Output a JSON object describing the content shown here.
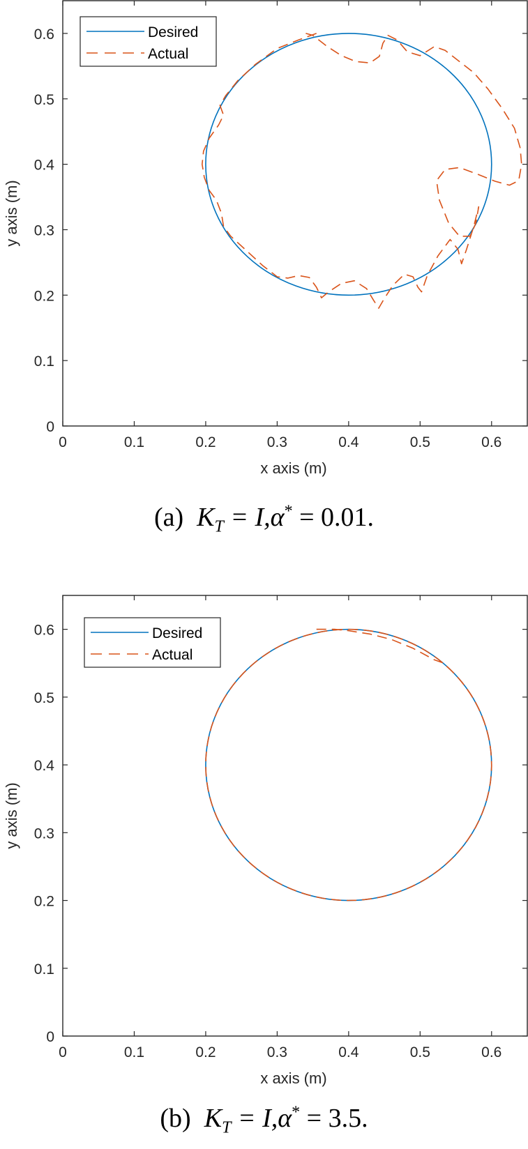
{
  "chart_data": [
    {
      "type": "line",
      "panel": "a",
      "caption": {
        "label": "(a)",
        "gain": "K",
        "gain_sub": "T",
        "eq1": " = I,",
        "alpha": "α",
        "star": "*",
        "value": " = 0.01."
      },
      "caption_text": "(a) K_T = I, α* = 0.01.",
      "xlabel": "x axis (m)",
      "ylabel": "y axis (m)",
      "xlim": [
        0,
        0.65
      ],
      "ylim": [
        0,
        0.65
      ],
      "xticks": [
        "0",
        "0.1",
        "0.2",
        "0.3",
        "0.4",
        "0.5",
        "0.6"
      ],
      "yticks": [
        "0",
        "0.1",
        "0.2",
        "0.3",
        "0.4",
        "0.5",
        "0.6"
      ],
      "grid": false,
      "legend": {
        "position": "upper-left",
        "entries": [
          "Desired",
          "Actual"
        ]
      },
      "series": [
        {
          "name": "Desired",
          "style": "solid",
          "color": "#0072BD",
          "shape": "circle",
          "center": [
            0.4,
            0.4
          ],
          "radius": 0.2
        },
        {
          "name": "Actual",
          "style": "dashed",
          "color": "#D95319",
          "points": [
            [
              0.355,
              0.6
            ],
            [
              0.33,
              0.59
            ],
            [
              0.3,
              0.577
            ],
            [
              0.27,
              0.553
            ],
            [
              0.245,
              0.528
            ],
            [
              0.228,
              0.505
            ],
            [
              0.22,
              0.49
            ],
            [
              0.225,
              0.475
            ],
            [
              0.218,
              0.46
            ],
            [
              0.205,
              0.44
            ],
            [
              0.197,
              0.42
            ],
            [
              0.195,
              0.4
            ],
            [
              0.198,
              0.38
            ],
            [
              0.205,
              0.36
            ],
            [
              0.215,
              0.345
            ],
            [
              0.222,
              0.325
            ],
            [
              0.225,
              0.305
            ],
            [
              0.235,
              0.29
            ],
            [
              0.255,
              0.27
            ],
            [
              0.28,
              0.245
            ],
            [
              0.3,
              0.228
            ],
            [
              0.315,
              0.226
            ],
            [
              0.33,
              0.23
            ],
            [
              0.345,
              0.227
            ],
            [
              0.355,
              0.212
            ],
            [
              0.362,
              0.196
            ],
            [
              0.372,
              0.205
            ],
            [
              0.39,
              0.218
            ],
            [
              0.408,
              0.222
            ],
            [
              0.425,
              0.21
            ],
            [
              0.435,
              0.192
            ],
            [
              0.442,
              0.18
            ],
            [
              0.45,
              0.195
            ],
            [
              0.462,
              0.215
            ],
            [
              0.478,
              0.232
            ],
            [
              0.49,
              0.228
            ],
            [
              0.497,
              0.212
            ],
            [
              0.502,
              0.205
            ],
            [
              0.51,
              0.23
            ],
            [
              0.525,
              0.26
            ],
            [
              0.542,
              0.285
            ],
            [
              0.553,
              0.27
            ],
            [
              0.558,
              0.248
            ],
            [
              0.565,
              0.27
            ],
            [
              0.575,
              0.305
            ],
            [
              0.582,
              0.335
            ],
            [
              0.578,
              0.31
            ],
            [
              0.57,
              0.29
            ],
            [
              0.555,
              0.29
            ],
            [
              0.54,
              0.31
            ],
            [
              0.527,
              0.345
            ],
            [
              0.523,
              0.375
            ],
            [
              0.535,
              0.392
            ],
            [
              0.555,
              0.395
            ],
            [
              0.58,
              0.385
            ],
            [
              0.605,
              0.374
            ],
            [
              0.625,
              0.368
            ],
            [
              0.638,
              0.375
            ],
            [
              0.642,
              0.4
            ],
            [
              0.64,
              0.425
            ],
            [
              0.632,
              0.455
            ],
            [
              0.615,
              0.485
            ],
            [
              0.595,
              0.515
            ],
            [
              0.575,
              0.54
            ],
            [
              0.555,
              0.557
            ],
            [
              0.535,
              0.574
            ],
            [
              0.52,
              0.58
            ],
            [
              0.5,
              0.566
            ],
            [
              0.482,
              0.572
            ],
            [
              0.468,
              0.59
            ],
            [
              0.455,
              0.597
            ],
            [
              0.448,
              0.585
            ],
            [
              0.443,
              0.565
            ],
            [
              0.43,
              0.555
            ],
            [
              0.41,
              0.557
            ],
            [
              0.39,
              0.566
            ],
            [
              0.37,
              0.58
            ],
            [
              0.35,
              0.597
            ],
            [
              0.34,
              0.6
            ]
          ]
        }
      ]
    },
    {
      "type": "line",
      "panel": "b",
      "caption": {
        "label": "(b)",
        "gain": "K",
        "gain_sub": "T",
        "eq1": " = I,",
        "alpha": "α",
        "star": "*",
        "value": " = 3.5."
      },
      "caption_text": "(b) K_T = I, α* = 3.5.",
      "xlabel": "x axis (m)",
      "ylabel": "y axis (m)",
      "xlim": [
        0,
        0.65
      ],
      "ylim": [
        0,
        0.65
      ],
      "xticks": [
        "0",
        "0.1",
        "0.2",
        "0.3",
        "0.4",
        "0.5",
        "0.6"
      ],
      "yticks": [
        "0",
        "0.1",
        "0.2",
        "0.3",
        "0.4",
        "0.5",
        "0.6"
      ],
      "grid": false,
      "legend": {
        "position": "upper-left",
        "entries": [
          "Desired",
          "Actual"
        ]
      },
      "series": [
        {
          "name": "Desired",
          "style": "solid",
          "color": "#0072BD",
          "shape": "circle",
          "center": [
            0.4,
            0.4
          ],
          "radius": 0.2
        },
        {
          "name": "Actual",
          "style": "dashed",
          "color": "#D95319",
          "shape": "circle-tracking",
          "center": [
            0.4,
            0.4
          ],
          "radius": 0.2,
          "start_offset": [
            [
              0.355,
              0.6
            ],
            [
              0.38,
              0.6
            ],
            [
              0.4,
              0.598
            ],
            [
              0.43,
              0.593
            ],
            [
              0.46,
              0.585
            ],
            [
              0.49,
              0.572
            ],
            [
              0.52,
              0.555
            ]
          ]
        }
      ]
    }
  ]
}
